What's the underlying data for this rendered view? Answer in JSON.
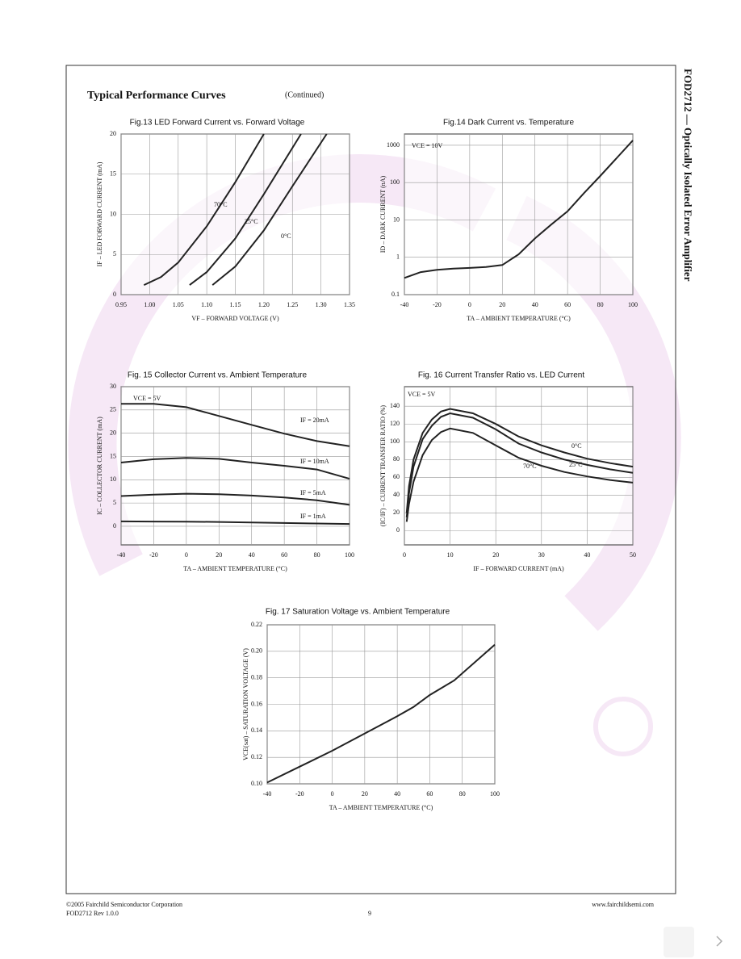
{
  "page": {
    "heading": "Typical Performance Curves",
    "subheading": "(Continued)",
    "side_title": "FOD2712 — Optically Isolated Error Amplifier"
  },
  "footer": {
    "copyright": "©2005 Fairchild Semiconductor Corporation",
    "revision": "FOD2712 Rev 1.0.0",
    "page": "9",
    "website": "www.fairchildsemi.com"
  },
  "chart_data": [
    {
      "type": "line",
      "title": "Fig.13  LED Forward Current vs. Forward Voltage",
      "x_label": "VF – FORWARD VOLTAGE (V)",
      "y_label": "IF – LED FORWARD CURRENT (mA)",
      "xlim": [
        0.95,
        1.35
      ],
      "xticks": [
        0.95,
        {
          "value": 1.0,
          "label": "1.00"
        },
        1.05,
        {
          "value": 1.1,
          "label": "1.10"
        },
        1.15,
        {
          "value": 1.2,
          "label": "1.20"
        },
        1.25,
        {
          "value": 1.3,
          "label": "1.30"
        },
        1.35
      ],
      "ylim": [
        0,
        20
      ],
      "yticks": [
        0,
        5,
        10,
        15,
        20
      ],
      "grid": true,
      "color": "#222222",
      "series": [
        {
          "name": "70°C",
          "x": [
            0.99,
            1.02,
            1.05,
            1.1,
            1.15,
            1.2
          ],
          "values": [
            1.2,
            2.2,
            4.0,
            8.5,
            14,
            20
          ]
        },
        {
          "name": "25°C",
          "x": [
            1.07,
            1.1,
            1.15,
            1.2,
            1.265
          ],
          "values": [
            1.2,
            2.8,
            7,
            12.5,
            20
          ]
        },
        {
          "name": "0°C",
          "x": [
            1.11,
            1.15,
            1.2,
            1.25,
            1.31
          ],
          "values": [
            1.2,
            3.5,
            8,
            13.5,
            20
          ]
        }
      ]
    },
    {
      "type": "line",
      "title": "Fig.14  Dark Current vs. Temperature",
      "x_label": "TA – AMBIENT TEMPERATURE (°C)",
      "y_label": "ID – DARK CURRENT (nA)",
      "annotation": "VCE = 10V",
      "xlim": [
        -40,
        100
      ],
      "xticks": [
        -40,
        -20,
        0,
        20,
        40,
        60,
        80,
        100
      ],
      "ylim": [
        0.1,
        2000
      ],
      "yticks": [
        0.1,
        1,
        10,
        100,
        1000
      ],
      "log_y": true,
      "grid": true,
      "color": "#222222",
      "x": [
        -40,
        -30,
        -20,
        -10,
        0,
        10,
        20,
        30,
        40,
        50,
        60,
        70,
        80,
        90,
        100
      ],
      "series": [
        {
          "name": "ID",
          "values": [
            0.28,
            0.4,
            0.46,
            0.5,
            0.52,
            0.55,
            0.62,
            1.2,
            3.2,
            7.5,
            17,
            52,
            150,
            450,
            1350
          ]
        }
      ]
    },
    {
      "type": "line",
      "title": "Fig. 15  Collector Current vs. Ambient Temperature",
      "x_label": "TA – AMBIENT TEMPERATURE (°C)",
      "y_label": "IC – COLLECTOR CURRENT (mA)",
      "annotation": "VCE = 5V",
      "xlim": [
        -40,
        100
      ],
      "xticks": [
        -40,
        -20,
        0,
        20,
        40,
        60,
        80,
        100
      ],
      "ylim": [
        -4,
        30
      ],
      "yticks": [
        0,
        5,
        10,
        15,
        20,
        25,
        30
      ],
      "grid": true,
      "color": "#222222",
      "x": [
        -40,
        -20,
        0,
        20,
        40,
        60,
        80,
        100
      ],
      "series": [
        {
          "name": "IF = 20mA",
          "values": [
            26.3,
            26.3,
            25.6,
            23.7,
            21.8,
            19.9,
            18.3,
            17.2
          ]
        },
        {
          "name": "IF = 10mA",
          "values": [
            13.7,
            14.4,
            14.7,
            14.5,
            13.7,
            13.0,
            12.2,
            10.2
          ]
        },
        {
          "name": "IF = 5mA",
          "values": [
            6.5,
            6.8,
            7.0,
            6.9,
            6.6,
            6.2,
            5.6,
            4.6
          ]
        },
        {
          "name": "IF = 1mA",
          "values": [
            1.05,
            1.02,
            1.0,
            0.92,
            0.8,
            0.7,
            0.6,
            0.5
          ]
        }
      ]
    },
    {
      "type": "line",
      "title": "Fig. 16  Current Transfer Ratio vs. LED Current",
      "x_label": "IF – FORWARD CURRENT (mA)",
      "y_label": "(IC/IF) – CURRENT TRANSFER RATIO (%)",
      "annotation": "VCE = 5V",
      "xlim": [
        0,
        50
      ],
      "xticks": [
        0,
        10,
        20,
        30,
        40,
        50
      ],
      "ylim": [
        -16,
        162
      ],
      "yticks": [
        0,
        20,
        40,
        60,
        80,
        100,
        120,
        140
      ],
      "grid": true,
      "color": "#222222",
      "x": [
        0.5,
        1,
        2,
        4,
        6,
        8,
        10,
        15,
        20,
        25,
        30,
        35,
        40,
        45,
        50
      ],
      "series": [
        {
          "name": "0°C",
          "values": [
            20,
            50,
            80,
            110,
            125,
            134,
            137,
            132,
            120,
            106,
            96,
            88,
            81,
            76,
            72
          ]
        },
        {
          "name": "25°C",
          "values": [
            15,
            42,
            72,
            103,
            118,
            128,
            132,
            127,
            114,
            98,
            88,
            80,
            74,
            69,
            65
          ]
        },
        {
          "name": "70°C",
          "values": [
            10,
            30,
            55,
            85,
            102,
            111,
            115,
            110,
            96,
            82,
            73,
            66,
            61,
            57,
            54
          ]
        }
      ]
    },
    {
      "type": "line",
      "title": "Fig. 17  Saturation Voltage vs. Ambient Temperature",
      "x_label": "TA – AMBIENT TEMPERATURE (°C)",
      "y_label": "VCE(sat) – SATURATION VOLTAGE (V)",
      "xlim": [
        -40,
        100
      ],
      "xticks": [
        -40,
        -20,
        0,
        20,
        40,
        60,
        80,
        100
      ],
      "ylim": [
        0.1,
        0.22
      ],
      "yticks": [
        {
          "value": 0.1,
          "label": "0.10"
        },
        0.12,
        0.14,
        0.16,
        0.18,
        {
          "value": 0.2,
          "label": "0.20"
        },
        0.22
      ],
      "grid": true,
      "color": "#222222",
      "x": [
        -40,
        -20,
        0,
        20,
        40,
        50,
        60,
        75,
        100
      ],
      "series": [
        {
          "name": "VCE(sat)",
          "values": [
            0.101,
            0.113,
            0.125,
            0.138,
            0.151,
            0.158,
            0.167,
            0.178,
            0.205
          ]
        }
      ]
    }
  ]
}
